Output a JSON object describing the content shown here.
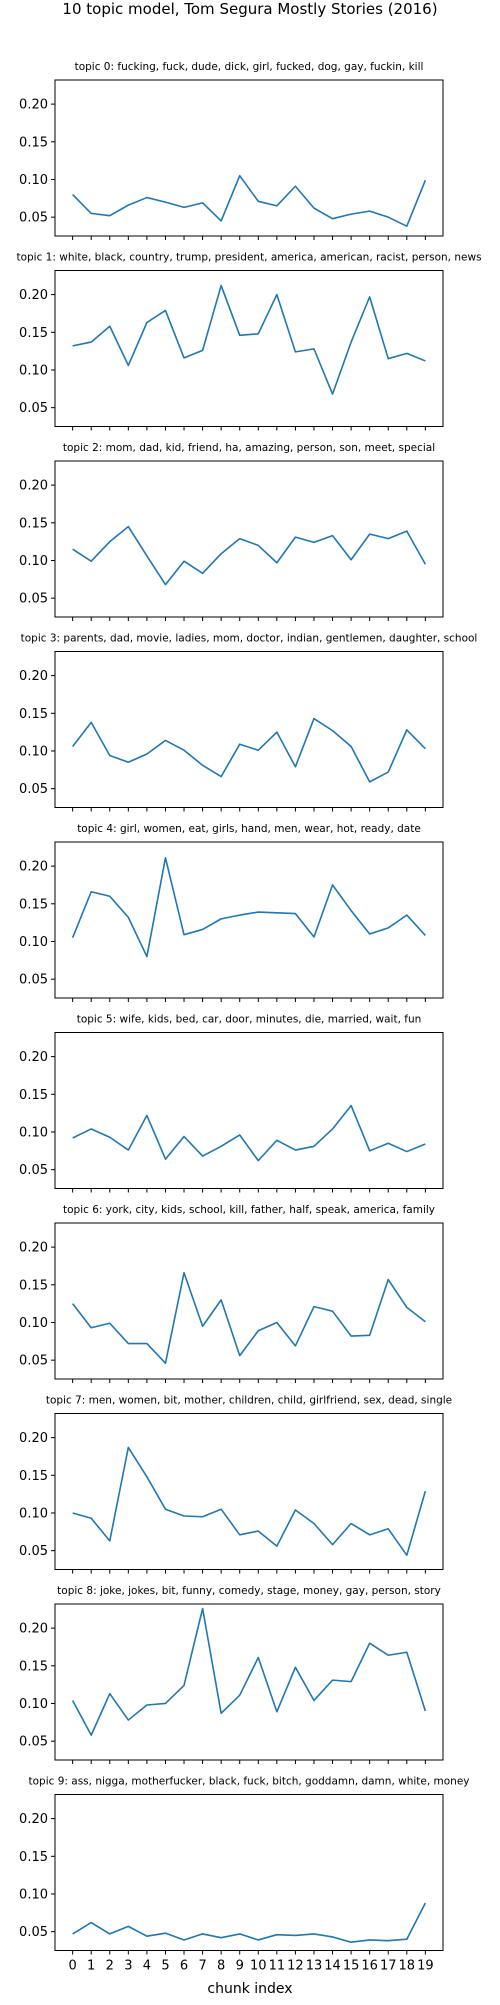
{
  "chart_data": {
    "type": "line",
    "title": "10 topic model, Tom Segura  Mostly Stories (2016)",
    "xlabel": "chunk index",
    "x": [
      0,
      1,
      2,
      3,
      4,
      5,
      6,
      7,
      8,
      9,
      10,
      11,
      12,
      13,
      14,
      15,
      16,
      17,
      18,
      19
    ],
    "x_tick_labels": [
      "0",
      "1",
      "2",
      "3",
      "4",
      "5",
      "6",
      "7",
      "8",
      "9",
      "10",
      "11",
      "12",
      "13",
      "14",
      "15",
      "16",
      "17",
      "18",
      "19"
    ],
    "y_ticks": [
      0.05,
      0.1,
      0.15,
      0.2
    ],
    "y_tick_labels": [
      "0.05",
      "0.10",
      "0.15",
      "0.20"
    ],
    "ylim": [
      0.025,
      0.232
    ],
    "xlim": [
      -0.95,
      19.95
    ],
    "line_color": "#1f77b4",
    "grid": false,
    "subplots": [
      {
        "title": "topic 0: fucking, fuck, dude, dick, girl, fucked, dog, gay, fuckin, kill",
        "values": [
          0.08,
          0.055,
          0.052,
          0.066,
          0.076,
          0.07,
          0.063,
          0.069,
          0.045,
          0.105,
          0.071,
          0.065,
          0.091,
          0.062,
          0.048,
          0.054,
          0.058,
          0.05,
          0.038,
          0.099
        ]
      },
      {
        "title": "topic 1: white, black, country, trump, president, america, american, racist, person, news",
        "values": [
          0.132,
          0.137,
          0.158,
          0.106,
          0.163,
          0.179,
          0.116,
          0.126,
          0.212,
          0.146,
          0.148,
          0.2,
          0.124,
          0.128,
          0.068,
          0.137,
          0.197,
          0.115,
          0.122,
          0.112
        ]
      },
      {
        "title": "topic 2: mom, dad, kid, friend, ha, amazing, person, son, meet, special",
        "values": [
          0.115,
          0.099,
          0.125,
          0.145,
          0.106,
          0.068,
          0.099,
          0.083,
          0.109,
          0.129,
          0.12,
          0.097,
          0.131,
          0.124,
          0.133,
          0.101,
          0.135,
          0.129,
          0.139,
          0.095
        ]
      },
      {
        "title": "topic 3: parents, dad, movie, ladies, mom, doctor, indian, gentlemen, daughter, school",
        "values": [
          0.106,
          0.138,
          0.094,
          0.085,
          0.096,
          0.114,
          0.101,
          0.081,
          0.066,
          0.109,
          0.101,
          0.125,
          0.079,
          0.143,
          0.127,
          0.106,
          0.059,
          0.072,
          0.128,
          0.103
        ]
      },
      {
        "title": "topic 4: girl, women, eat, girls, hand, men, wear, hot, ready, date",
        "values": [
          0.105,
          0.166,
          0.16,
          0.132,
          0.08,
          0.211,
          0.109,
          0.116,
          0.13,
          0.135,
          0.139,
          0.138,
          0.137,
          0.106,
          0.175,
          0.141,
          0.11,
          0.118,
          0.135,
          0.108
        ]
      },
      {
        "title": "topic 5: wife, kids, bed, car, door, minutes, die, married, wait, fun",
        "values": [
          0.092,
          0.104,
          0.093,
          0.076,
          0.122,
          0.064,
          0.094,
          0.068,
          0.081,
          0.096,
          0.062,
          0.089,
          0.076,
          0.081,
          0.104,
          0.135,
          0.075,
          0.085,
          0.074,
          0.084
        ]
      },
      {
        "title": "topic 6: york, city, kids, school, kill, father, half, speak, america, family",
        "values": [
          0.125,
          0.093,
          0.099,
          0.072,
          0.072,
          0.046,
          0.166,
          0.095,
          0.13,
          0.056,
          0.089,
          0.1,
          0.069,
          0.121,
          0.115,
          0.082,
          0.083,
          0.157,
          0.12,
          0.101
        ]
      },
      {
        "title": "topic 7: men, women, bit, mother, children, child, girlfriend, sex, dead, single",
        "values": [
          0.1,
          0.093,
          0.063,
          0.187,
          0.148,
          0.105,
          0.096,
          0.095,
          0.105,
          0.071,
          0.076,
          0.056,
          0.104,
          0.086,
          0.058,
          0.086,
          0.071,
          0.079,
          0.044,
          0.129
        ]
      },
      {
        "title": "topic 8: joke, jokes, bit, funny, comedy, stage, money, gay, person, story",
        "values": [
          0.104,
          0.058,
          0.113,
          0.078,
          0.098,
          0.1,
          0.124,
          0.226,
          0.087,
          0.111,
          0.161,
          0.089,
          0.148,
          0.104,
          0.131,
          0.129,
          0.18,
          0.164,
          0.168,
          0.09
        ]
      },
      {
        "title": "topic 9: ass, nigga, motherfucker, black, fuck, bitch, goddamn, damn, white, money",
        "values": [
          0.047,
          0.062,
          0.047,
          0.057,
          0.044,
          0.048,
          0.039,
          0.047,
          0.042,
          0.047,
          0.039,
          0.046,
          0.045,
          0.047,
          0.043,
          0.036,
          0.039,
          0.038,
          0.04,
          0.088
        ]
      }
    ]
  }
}
